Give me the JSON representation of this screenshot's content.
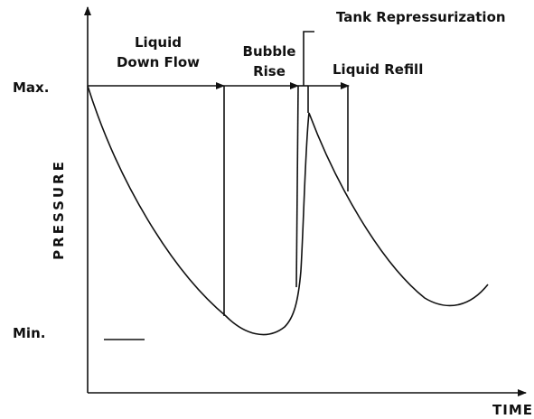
{
  "phases": {
    "liquid_down_flow": [
      "Liquid",
      "Down Flow"
    ],
    "bubble_rise": [
      "Bubble",
      "Rise"
    ],
    "tank_repressurization": "Tank Repressurization",
    "liquid_refill": "Liquid Refill"
  },
  "axes": {
    "y_label": "PRESSURE",
    "x_label": "TIME",
    "max_label": "Max.",
    "min_label": "Min."
  }
}
